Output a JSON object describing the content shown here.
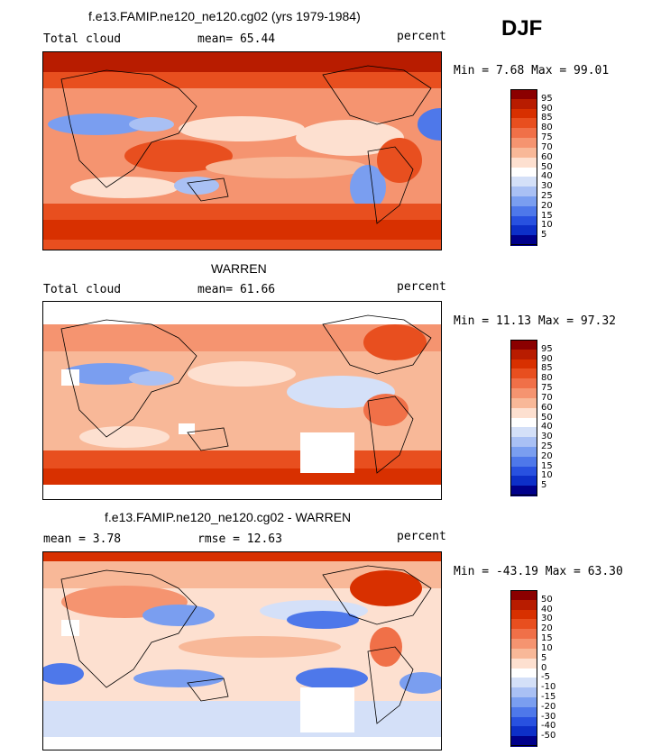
{
  "season_label": "DJF",
  "panels": [
    {
      "title": "f.e13.FAMIP.ne120_ne120.cg02 (yrs 1979-1984)",
      "left_label": "Total cloud",
      "center_label": "mean=  65.44",
      "right_label": "percent",
      "minmax_label": "Min =   7.68 Max =  99.01",
      "colorbar_levels": [
        "95",
        "90",
        "85",
        "80",
        "75",
        "70",
        "60",
        "50",
        "40",
        "30",
        "25",
        "20",
        "15",
        "10",
        "5"
      ]
    },
    {
      "title": "WARREN",
      "left_label": "Total cloud",
      "center_label": "mean=  61.66",
      "right_label": "percent",
      "minmax_label": "Min =  11.13 Max =  97.32",
      "colorbar_levels": [
        "95",
        "90",
        "85",
        "80",
        "75",
        "70",
        "60",
        "50",
        "40",
        "30",
        "25",
        "20",
        "15",
        "10",
        "5"
      ]
    },
    {
      "title": "f.e13.FAMIP.ne120_ne120.cg02 - WARREN",
      "left_label": "mean =   3.78",
      "center_label": "rmse =  12.63",
      "right_label": "percent",
      "minmax_label": "Min = -43.19 Max =  63.30",
      "colorbar_levels": [
        "50",
        "40",
        "30",
        "20",
        "15",
        "10",
        "5",
        "0",
        "-5",
        "-10",
        "-15",
        "-20",
        "-30",
        "-40",
        "-50"
      ]
    }
  ],
  "colorbar_colors": [
    "#8b0000",
    "#b81c00",
    "#d83000",
    "#e84f1f",
    "#f07048",
    "#f59470",
    "#f8b898",
    "#fde0d0",
    "#ffffff",
    "#d4e0f8",
    "#a9c0f4",
    "#7a9ef0",
    "#4e78ea",
    "#2851e0",
    "#0d2fc8",
    "#00008b"
  ]
}
